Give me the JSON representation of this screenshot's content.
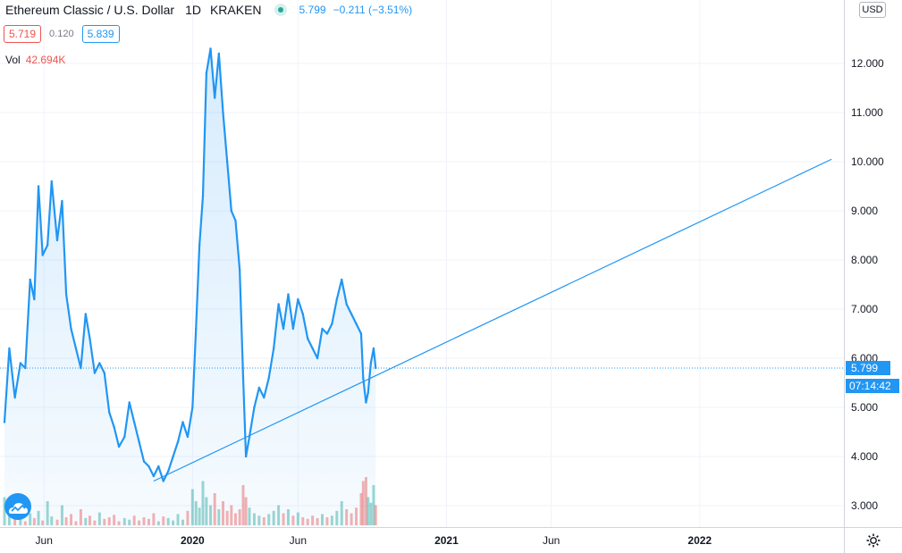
{
  "header": {
    "symbol": "Ethereum Classic / U.S. Dollar",
    "timeframe": "1D",
    "exchange": "KRAKEN",
    "last": "5.799",
    "change": "−0.211 (−3.51%)"
  },
  "quote": {
    "bid": "5.719",
    "spread": "0.120",
    "ask": "5.839"
  },
  "volume": {
    "label": "Vol",
    "value": "42.694K"
  },
  "price_axis": {
    "currency": "USD",
    "current_price": "5.799",
    "countdown": "07:14:42"
  },
  "colors": {
    "line": "#2196f3",
    "fill": "#e3f2fd",
    "vol_up": "#26a69a",
    "vol_down": "#ef5350",
    "grid": "#f0f3fa"
  },
  "chart_data": {
    "type": "area",
    "x_axis_labels": [
      "Jun",
      "2020",
      "Jun",
      "2021",
      "Jun",
      "2022"
    ],
    "y_ticks": [
      "3.000",
      "4.000",
      "5.000",
      "6.000",
      "7.000",
      "8.000",
      "9.000",
      "10.000",
      "11.000",
      "12.000"
    ],
    "ylim": [
      2.6,
      13.2
    ],
    "x_start": "2019-04-05",
    "x_end": "2022-07-20",
    "series": [
      {
        "points": [
          [
            "2019-04-05",
            4.7
          ],
          [
            "2019-04-12",
            6.2
          ],
          [
            "2019-04-20",
            5.2
          ],
          [
            "2019-04-28",
            5.9
          ],
          [
            "2019-05-05",
            5.8
          ],
          [
            "2019-05-12",
            7.6
          ],
          [
            "2019-05-18",
            7.2
          ],
          [
            "2019-05-24",
            9.5
          ],
          [
            "2019-05-30",
            8.1
          ],
          [
            "2019-06-06",
            8.3
          ],
          [
            "2019-06-12",
            9.6
          ],
          [
            "2019-06-20",
            8.4
          ],
          [
            "2019-06-27",
            9.2
          ],
          [
            "2019-07-03",
            7.3
          ],
          [
            "2019-07-10",
            6.6
          ],
          [
            "2019-07-17",
            6.2
          ],
          [
            "2019-07-24",
            5.8
          ],
          [
            "2019-07-31",
            6.9
          ],
          [
            "2019-08-06",
            6.4
          ],
          [
            "2019-08-13",
            5.7
          ],
          [
            "2019-08-20",
            5.9
          ],
          [
            "2019-08-27",
            5.7
          ],
          [
            "2019-09-03",
            4.9
          ],
          [
            "2019-09-10",
            4.6
          ],
          [
            "2019-09-17",
            4.2
          ],
          [
            "2019-09-25",
            4.4
          ],
          [
            "2019-10-02",
            5.1
          ],
          [
            "2019-10-09",
            4.7
          ],
          [
            "2019-10-16",
            4.3
          ],
          [
            "2019-10-23",
            3.9
          ],
          [
            "2019-10-30",
            3.8
          ],
          [
            "2019-11-06",
            3.6
          ],
          [
            "2019-11-13",
            3.8
          ],
          [
            "2019-11-20",
            3.5
          ],
          [
            "2019-11-27",
            3.7
          ],
          [
            "2019-12-04",
            4.0
          ],
          [
            "2019-12-11",
            4.3
          ],
          [
            "2019-12-18",
            4.7
          ],
          [
            "2019-12-25",
            4.4
          ],
          [
            "2020-01-01",
            5.0
          ],
          [
            "2020-01-06",
            6.6
          ],
          [
            "2020-01-11",
            8.3
          ],
          [
            "2020-01-16",
            9.3
          ],
          [
            "2020-01-21",
            11.8
          ],
          [
            "2020-01-27",
            12.3
          ],
          [
            "2020-02-02",
            11.3
          ],
          [
            "2020-02-08",
            12.2
          ],
          [
            "2020-02-14",
            11.0
          ],
          [
            "2020-02-20",
            10.0
          ],
          [
            "2020-02-26",
            9.0
          ],
          [
            "2020-03-03",
            8.8
          ],
          [
            "2020-03-09",
            7.8
          ],
          [
            "2020-03-14",
            5.6
          ],
          [
            "2020-03-18",
            4.0
          ],
          [
            "2020-03-23",
            4.4
          ],
          [
            "2020-03-30",
            5.0
          ],
          [
            "2020-04-06",
            5.4
          ],
          [
            "2020-04-13",
            5.2
          ],
          [
            "2020-04-20",
            5.6
          ],
          [
            "2020-04-27",
            6.2
          ],
          [
            "2020-05-04",
            7.1
          ],
          [
            "2020-05-11",
            6.6
          ],
          [
            "2020-05-18",
            7.3
          ],
          [
            "2020-05-25",
            6.6
          ],
          [
            "2020-06-01",
            7.2
          ],
          [
            "2020-06-08",
            6.9
          ],
          [
            "2020-06-15",
            6.4
          ],
          [
            "2020-06-22",
            6.2
          ],
          [
            "2020-06-29",
            6.0
          ],
          [
            "2020-07-06",
            6.6
          ],
          [
            "2020-07-13",
            6.5
          ],
          [
            "2020-07-20",
            6.7
          ],
          [
            "2020-07-27",
            7.2
          ],
          [
            "2020-08-03",
            7.6
          ],
          [
            "2020-08-10",
            7.1
          ],
          [
            "2020-08-17",
            6.9
          ],
          [
            "2020-08-24",
            6.7
          ],
          [
            "2020-08-31",
            6.5
          ],
          [
            "2020-09-03",
            5.6
          ],
          [
            "2020-09-07",
            5.1
          ],
          [
            "2020-09-10",
            5.3
          ],
          [
            "2020-09-14",
            5.9
          ],
          [
            "2020-09-18",
            6.2
          ],
          [
            "2020-09-21",
            5.8
          ]
        ]
      }
    ],
    "trendline": {
      "from": [
        "2019-11-06",
        3.5
      ],
      "to": [
        "2022-07-10",
        10.05
      ]
    },
    "volume_bars": [
      0.35,
      0.12,
      0.08,
      0.22,
      0.05,
      0.15,
      0.09,
      0.18,
      0.06,
      0.3,
      0.11,
      0.07,
      0.25,
      0.1,
      0.14,
      0.05,
      0.2,
      0.09,
      0.12,
      0.06,
      0.16,
      0.08,
      0.1,
      0.13,
      0.05,
      0.09,
      0.07,
      0.12,
      0.06,
      0.1,
      0.08,
      0.15,
      0.05,
      0.11,
      0.09,
      0.06,
      0.14,
      0.07,
      0.18,
      0.45,
      0.3,
      0.22,
      0.55,
      0.35,
      0.25,
      0.4,
      0.2,
      0.3,
      0.18,
      0.25,
      0.15,
      0.2,
      0.5,
      0.35,
      0.22,
      0.15,
      0.12,
      0.1,
      0.14,
      0.18,
      0.25,
      0.15,
      0.2,
      0.12,
      0.16,
      0.1,
      0.08,
      0.12,
      0.09,
      0.14,
      0.1,
      0.12,
      0.18,
      0.3,
      0.2,
      0.15,
      0.22,
      0.4,
      0.55,
      0.6,
      0.35,
      0.28,
      0.5,
      0.25
    ]
  },
  "logo_icon": "tradingview-cloud-icon",
  "settings_icon": "gear-icon"
}
